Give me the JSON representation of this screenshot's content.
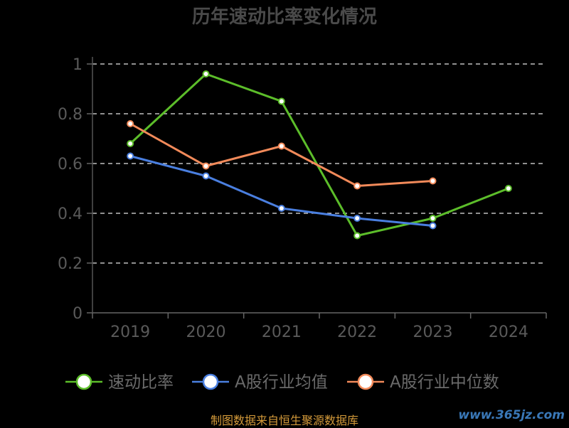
{
  "chart_data": {
    "type": "line",
    "title": "历年速动比率变化情况",
    "categories": [
      "2019",
      "2020",
      "2021",
      "2022",
      "2023",
      "2024"
    ],
    "ylim": [
      0,
      1
    ],
    "yticks": [
      "0",
      "0.2",
      "0.4",
      "0.6",
      "0.8",
      "1"
    ],
    "grid": true,
    "legend_position": "bottom",
    "series": [
      {
        "name": "速动比率",
        "color": "#5cbd2a",
        "values": [
          0.68,
          0.96,
          0.85,
          0.31,
          0.38,
          0.5
        ]
      },
      {
        "name": "A股行业均值",
        "color": "#4a7fe0",
        "values": [
          0.63,
          0.55,
          0.42,
          0.38,
          0.35,
          null
        ]
      },
      {
        "name": "A股行业中位数",
        "color": "#f28a5a",
        "values": [
          0.76,
          0.59,
          0.67,
          0.51,
          0.53,
          null
        ]
      }
    ]
  },
  "footer": {
    "source": "制图数据来自恒生聚源数据库",
    "watermark": "www.365jz.com"
  }
}
